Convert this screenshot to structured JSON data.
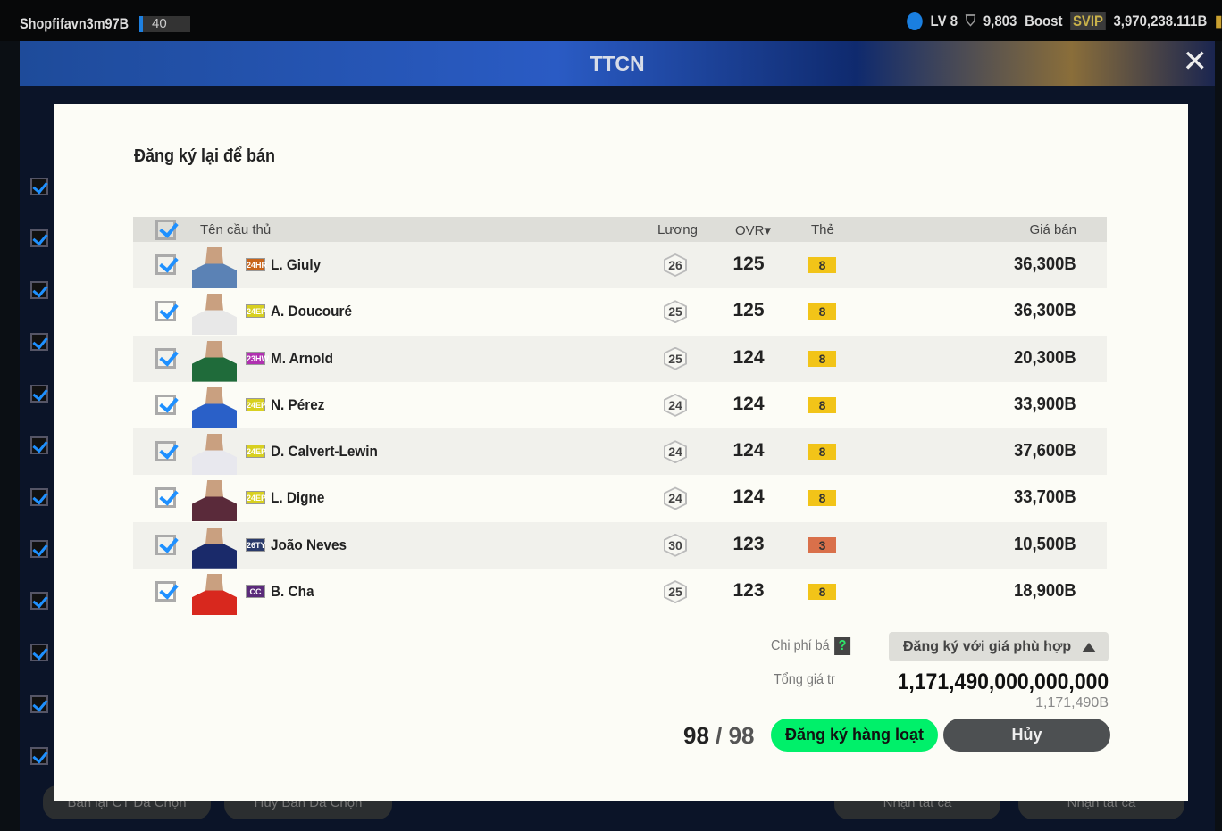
{
  "topbar": {
    "username": "Shopfifavn3m97B",
    "level_badge": "40",
    "lv": "LV 8",
    "points": "9,803",
    "boost": "Boost",
    "svip": "SVIP",
    "balance": "3,970,238.111B"
  },
  "window": {
    "title": "TTCN",
    "close_label": "✕"
  },
  "background_buttons": [
    "Bán lại CT Đã Chọn",
    "Hủy Bán Đã Chọn",
    "Nhận tất cả",
    "Nhận tất cả"
  ],
  "modal": {
    "title": "Đăng ký lại để bán",
    "columns": {
      "name": "Tên cầu thủ",
      "salary": "Lương",
      "ovr": "OVR▾",
      "grade": "Thẻ",
      "price": "Giá bán"
    },
    "players": [
      {
        "season": "24HR",
        "season_color": "#c8641a",
        "name": "L. Giuly",
        "salary": "26",
        "ovr": "125",
        "grade": "8",
        "grade_color": "#f2c418",
        "price": "36,300B",
        "kit": "#5b82b5",
        "checked": true
      },
      {
        "season": "24EP",
        "season_color": "#d8d020",
        "name": "A. Doucouré",
        "salary": "25",
        "ovr": "125",
        "grade": "8",
        "grade_color": "#f2c418",
        "price": "36,300B",
        "kit": "#e8e8e8",
        "checked": true
      },
      {
        "season": "23HW",
        "season_color": "#b030b0",
        "name": "M. Arnold",
        "salary": "25",
        "ovr": "124",
        "grade": "8",
        "grade_color": "#f2c418",
        "price": "20,300B",
        "kit": "#1f6b3a",
        "checked": true
      },
      {
        "season": "24EP",
        "season_color": "#d8d020",
        "name": "N. Pérez",
        "salary": "24",
        "ovr": "124",
        "grade": "8",
        "grade_color": "#f2c418",
        "price": "33,900B",
        "kit": "#2a60c8",
        "checked": true
      },
      {
        "season": "24EP",
        "season_color": "#d8d020",
        "name": "D. Calvert-Lewin",
        "salary": "24",
        "ovr": "124",
        "grade": "8",
        "grade_color": "#f2c418",
        "price": "37,600B",
        "kit": "#e8e8ee",
        "checked": true
      },
      {
        "season": "24EP",
        "season_color": "#d8d020",
        "name": "L. Digne",
        "salary": "24",
        "ovr": "124",
        "grade": "8",
        "grade_color": "#f2c418",
        "price": "33,700B",
        "kit": "#5a2a3a",
        "checked": true
      },
      {
        "season": "26TY",
        "season_color": "#2a3a6a",
        "name": "João Neves",
        "salary": "30",
        "ovr": "123",
        "grade": "3",
        "grade_color": "#d9704a",
        "price": "10,500B",
        "kit": "#1a2a6a",
        "checked": true
      },
      {
        "season": "CC",
        "season_color": "#5a2a7a",
        "name": "B. Cha",
        "salary": "25",
        "ovr": "123",
        "grade": "8",
        "grade_color": "#f2c418",
        "price": "18,900B",
        "kit": "#d8281e",
        "checked": true
      }
    ],
    "fee_label": "Chi phí bá",
    "help_icon": "?",
    "price_option": "Đăng ký với giá phù hợp",
    "total_label": "Tổng giá tr",
    "total_value": "1,171,490,000,000,000",
    "total_short": "1,171,490B",
    "count_selected": "98",
    "count_sep": " / ",
    "count_total": "98",
    "register_button": "Đăng ký hàng loạt",
    "cancel_button": "Hủy"
  }
}
